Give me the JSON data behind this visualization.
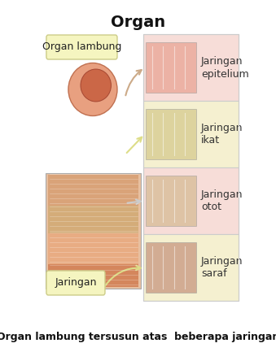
{
  "title": "Organ",
  "subtitle": "Organ lambung tersusun atas  beberapa jaringan",
  "bg_color": "#ffffff",
  "label_organ_lambung": "Organ lambung",
  "label_jaringan": "Jaringan",
  "tissue_labels": [
    "Jaringan\nepitelium",
    "Jaringan\nikat",
    "Jaringan\notot",
    "Jaringan\nsaraf"
  ],
  "panel1_bg": "#f7ddd8",
  "panel2_bg": "#f5f0d0",
  "panel3_bg": "#f7ddd8",
  "panel4_bg": "#f5f0d0",
  "organ_label_bg": "#f5f5c0",
  "jaringan_label_bg": "#f5f5c0",
  "title_fontsize": 14,
  "label_fontsize": 9,
  "subtitle_fontsize": 9,
  "tissue_label_fontsize": 9
}
